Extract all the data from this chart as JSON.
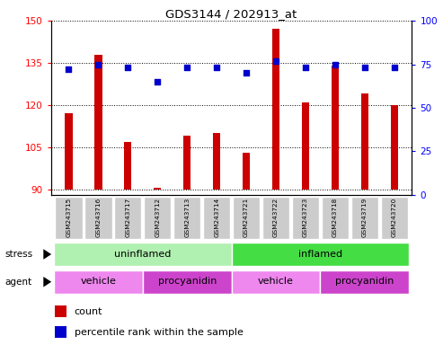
{
  "title": "GDS3144 / 202913_at",
  "samples": [
    "GSM243715",
    "GSM243716",
    "GSM243717",
    "GSM243712",
    "GSM243713",
    "GSM243714",
    "GSM243721",
    "GSM243722",
    "GSM243723",
    "GSM243718",
    "GSM243719",
    "GSM243720"
  ],
  "counts": [
    117,
    138,
    107,
    90.5,
    109,
    110,
    103,
    147,
    121,
    134,
    124,
    120
  ],
  "percentile_ranks": [
    72,
    75,
    73,
    65,
    73,
    73,
    70,
    77,
    73,
    75,
    73,
    73
  ],
  "ylim_left": [
    88,
    150
  ],
  "ylim_right": [
    0,
    100
  ],
  "yticks_left": [
    90,
    105,
    120,
    135,
    150
  ],
  "yticks_right": [
    0,
    25,
    50,
    75,
    100
  ],
  "bar_color": "#cc0000",
  "dot_color": "#0000cc",
  "bar_bottom": 90,
  "stress_groups": [
    {
      "label": "uninflamed",
      "start": 0,
      "end": 6,
      "color": "#b0f0b0"
    },
    {
      "label": "inflamed",
      "start": 6,
      "end": 12,
      "color": "#44dd44"
    }
  ],
  "agent_groups": [
    {
      "label": "vehicle",
      "start": 0,
      "end": 3,
      "color": "#ee88ee"
    },
    {
      "label": "procyanidin",
      "start": 3,
      "end": 6,
      "color": "#cc44cc"
    },
    {
      "label": "vehicle",
      "start": 6,
      "end": 9,
      "color": "#ee88ee"
    },
    {
      "label": "procyanidin",
      "start": 9,
      "end": 12,
      "color": "#cc44cc"
    }
  ],
  "stress_label": "stress",
  "agent_label": "agent",
  "legend_count_label": "count",
  "legend_pct_label": "percentile rank within the sample",
  "tick_label_bg": "#cccccc",
  "bar_width": 0.25
}
